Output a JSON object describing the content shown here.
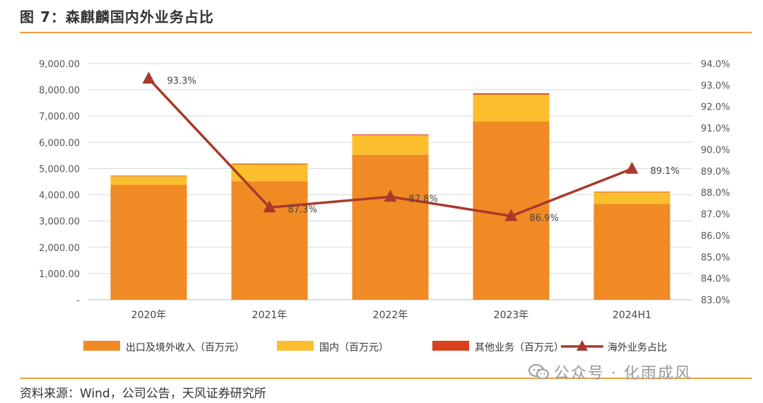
{
  "title": "图 7：森麒麟国内外业务占比",
  "source": "资料来源：Wind，公司公告，天风证券研究所",
  "watermark": "公众号 · 化雨成风",
  "colors": {
    "export": "#f08a24",
    "domestic": "#fbbf2e",
    "other": "#d9401c",
    "line": "#a83a2c",
    "accent": "#f0a040"
  },
  "chart_data": {
    "type": "bar",
    "categories": [
      "2020年",
      "2021年",
      "2022年",
      "2023年",
      "2024H1"
    ],
    "series": [
      {
        "name": "出口及境外收入（百万元）",
        "type": "bar",
        "axis": "left",
        "values": [
          4380,
          4520,
          5530,
          6800,
          3650
        ]
      },
      {
        "name": "国内（百万元）",
        "type": "bar",
        "axis": "left",
        "values": [
          330,
          640,
          740,
          1020,
          450
        ]
      },
      {
        "name": "其他业务（百万元）",
        "type": "bar",
        "axis": "left",
        "values": [
          20,
          30,
          30,
          50,
          20
        ]
      },
      {
        "name": "海外业务占比",
        "type": "line",
        "axis": "right",
        "values": [
          93.3,
          87.3,
          87.8,
          86.9,
          89.1
        ],
        "labels": [
          "93.3%",
          "87.3%",
          "87.8%",
          "86.9%",
          "89.1%"
        ]
      }
    ],
    "y_left": {
      "min": 0,
      "max": 9000,
      "ticks": [
        "-",
        "1,000.00",
        "2,000.00",
        "3,000.00",
        "4,000.00",
        "5,000.00",
        "6,000.00",
        "7,000.00",
        "8,000.00",
        "9,000.00"
      ]
    },
    "y_right": {
      "min": 83,
      "max": 94,
      "ticks": [
        "83.0%",
        "84.0%",
        "85.0%",
        "86.0%",
        "87.0%",
        "88.0%",
        "89.0%",
        "90.0%",
        "91.0%",
        "92.0%",
        "93.0%",
        "94.0%"
      ]
    },
    "grid": true,
    "legend_position": "bottom"
  }
}
